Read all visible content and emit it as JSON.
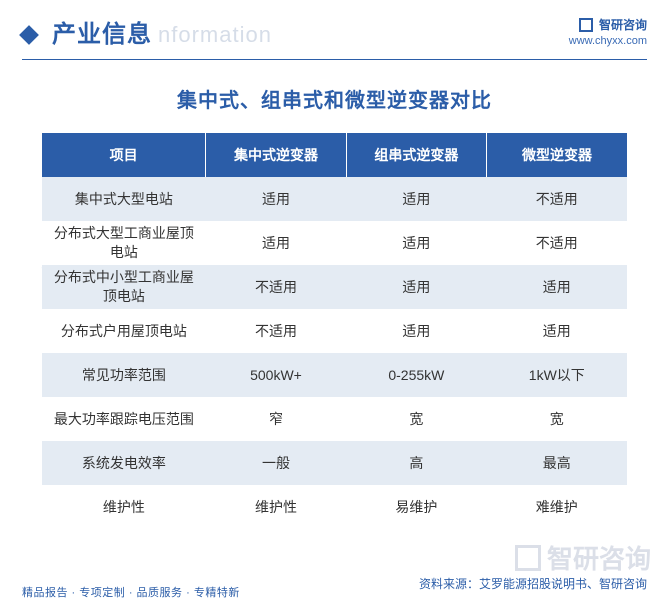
{
  "header": {
    "title_cn": "产业信息",
    "title_en": "nformation",
    "brand_name": "智研咨询",
    "brand_url": "www.chyxx.com"
  },
  "main_title": "集中式、组串式和微型逆变器对比",
  "table": {
    "columns": [
      "项目",
      "集中式逆变器",
      "组串式逆变器",
      "微型逆变器"
    ],
    "rows": [
      [
        "集中式大型电站",
        "适用",
        "适用",
        "不适用"
      ],
      [
        "分布式大型工商业屋顶电站",
        "适用",
        "适用",
        "不适用"
      ],
      [
        "分布式中小型工商业屋顶电站",
        "不适用",
        "适用",
        "适用"
      ],
      [
        "分布式户用屋顶电站",
        "不适用",
        "适用",
        "适用"
      ],
      [
        "常见功率范围",
        "500kW+",
        "0-255kW",
        "1kW以下"
      ],
      [
        "最大功率跟踪电压范围",
        "窄",
        "宽",
        "宽"
      ],
      [
        "系统发电效率",
        "一般",
        "高",
        "最高"
      ],
      [
        "维护性",
        "维护性",
        "易维护",
        "难维护"
      ]
    ],
    "header_bg": "#2b5da8",
    "header_fg": "#ffffff",
    "row_odd_bg": "#e4ebf3",
    "row_even_bg": "#ffffff",
    "text_color": "#333333",
    "font_size": 14
  },
  "source_line": "资料来源：艾罗能源招股说明书、智研咨询",
  "footer_left": "精品报告 · 专项定制 · 品质服务 · 专精特新",
  "watermark_text": "智研咨询",
  "colors": {
    "brand": "#2b5da8",
    "page_bg": "#ffffff"
  }
}
